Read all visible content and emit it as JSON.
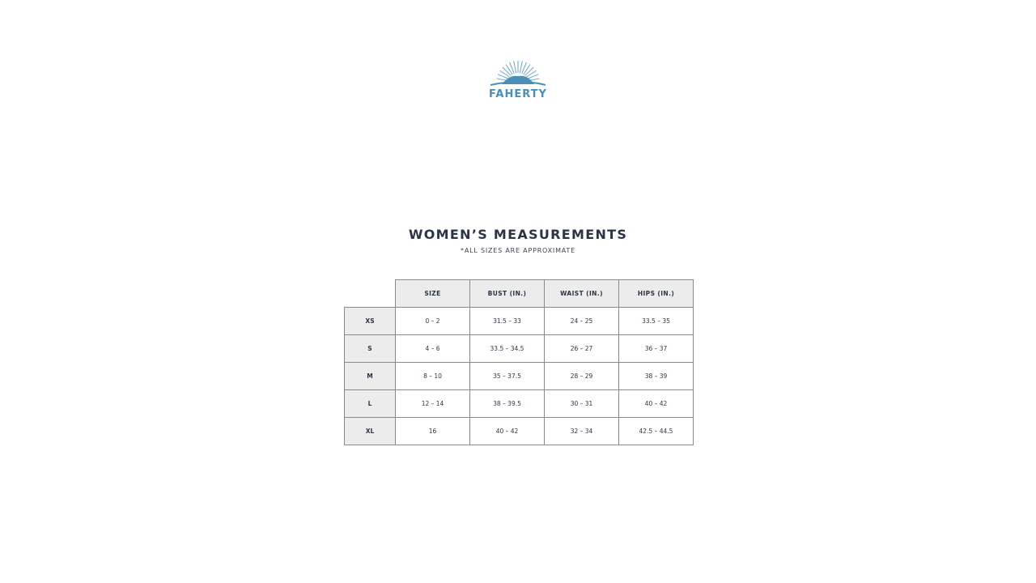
{
  "brand": {
    "name": "FAHERTY",
    "color": "#4a8fb8"
  },
  "title": "WOMEN’S MEASUREMENTS",
  "subtitle": "*ALL SIZES ARE APPROXIMATE",
  "table": {
    "columns": [
      "SIZE",
      "BUST (IN.)",
      "WAIST (IN.)",
      "HIPS (IN.)"
    ],
    "rows": [
      {
        "label": "XS",
        "values": [
          "0 – 2",
          "31.5 – 33",
          "24 – 25",
          "33.5 – 35"
        ]
      },
      {
        "label": "S",
        "values": [
          "4 – 6",
          "33.5 – 34.5",
          "26 – 27",
          "36 – 37"
        ]
      },
      {
        "label": "M",
        "values": [
          "8 – 10",
          "35 – 37.5",
          "28 – 29",
          "38 – 39"
        ]
      },
      {
        "label": "L",
        "values": [
          "12 – 14",
          "38 – 39.5",
          "30 – 31",
          "40 – 42"
        ]
      },
      {
        "label": "XL",
        "values": [
          "16",
          "40 – 42",
          "32 – 34",
          "42.5 – 44.5"
        ]
      }
    ]
  }
}
